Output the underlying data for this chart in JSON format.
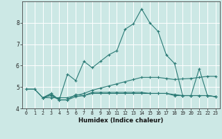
{
  "xlabel": "Humidex (Indice chaleur)",
  "background_color": "#cce8e5",
  "line_color": "#2a7a75",
  "grid_color": "#ffffff",
  "x": [
    0,
    1,
    2,
    3,
    4,
    5,
    6,
    7,
    8,
    9,
    10,
    11,
    12,
    13,
    14,
    15,
    16,
    17,
    18,
    19,
    20,
    21,
    22,
    23
  ],
  "series1": [
    4.9,
    4.9,
    4.5,
    4.7,
    4.4,
    5.6,
    5.3,
    6.2,
    5.9,
    6.2,
    6.5,
    6.7,
    7.7,
    7.95,
    8.65,
    8.0,
    7.6,
    6.5,
    6.1,
    4.6,
    4.6,
    5.85,
    4.6,
    4.55
  ],
  "series2": [
    null,
    null,
    4.5,
    4.6,
    4.4,
    4.4,
    4.65,
    4.6,
    4.75,
    4.75,
    4.75,
    4.75,
    4.75,
    4.75,
    4.75,
    4.7,
    4.7,
    4.7,
    4.65,
    4.6,
    4.6,
    4.6,
    4.6,
    4.55
  ],
  "series3": [
    4.9,
    4.9,
    4.5,
    4.5,
    4.5,
    4.5,
    4.6,
    4.7,
    4.85,
    4.95,
    5.05,
    5.15,
    5.25,
    5.35,
    5.45,
    5.45,
    5.45,
    5.4,
    5.35,
    5.38,
    5.4,
    5.45,
    5.5,
    5.5
  ],
  "series4": [
    null,
    null,
    4.5,
    4.65,
    4.4,
    4.4,
    4.55,
    4.6,
    4.7,
    4.7,
    4.7,
    4.7,
    4.7,
    4.7,
    4.7,
    4.7,
    4.7,
    4.7,
    4.6,
    4.6,
    4.6,
    4.6,
    4.6,
    4.55
  ],
  "ylim": [
    4.0,
    9.0
  ],
  "xlim": [
    -0.5,
    23.5
  ],
  "yticks": [
    4,
    5,
    6,
    7,
    8
  ],
  "xticks": [
    0,
    1,
    2,
    3,
    4,
    5,
    6,
    7,
    8,
    9,
    10,
    11,
    12,
    13,
    14,
    15,
    16,
    17,
    18,
    19,
    20,
    21,
    22,
    23
  ]
}
